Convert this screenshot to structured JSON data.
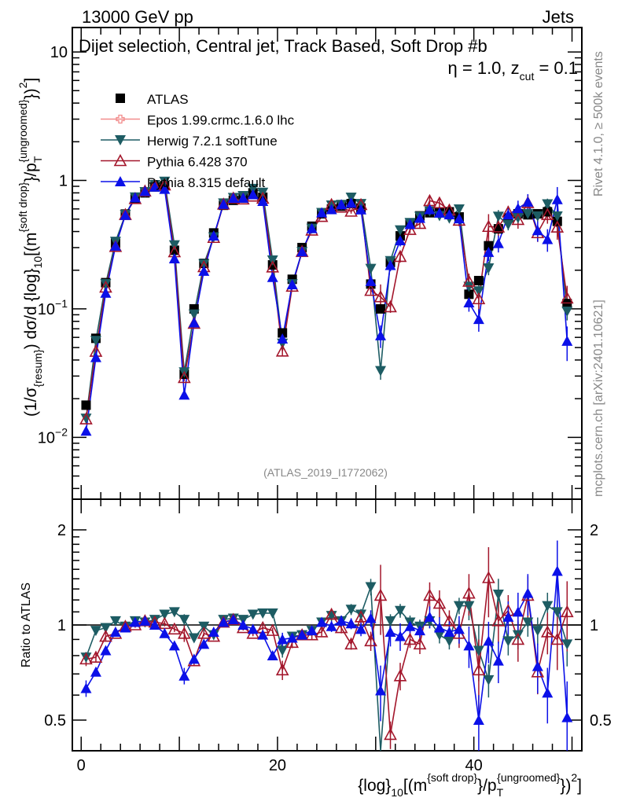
{
  "header": {
    "left": "13000 GeV pp",
    "right": "Jets"
  },
  "side": {
    "rivet": "Rivet 4.1.0, ≥ 500k events",
    "mcplots": "mcplots.cern.ch [arXiv:2401.10621]"
  },
  "watermark": "(ATLAS_2019_I1772062)",
  "chart_data": {
    "type": "scatter",
    "title": "Dijet selection, Central jet, Track Based, Soft Drop #b",
    "title_suffix": {
      "eta": "η = 1.0, z",
      "sub": "cut",
      "tail": " = 0.1"
    },
    "ylabel": {
      "pre": "(1/σ",
      "sub1": "{resum}",
      "mid": ") dσ/d {log}",
      "sub2": "10",
      "mid2": "[(m",
      "sup1": "{soft drop}",
      "mid3": "}/p",
      "sub3": "T",
      "sup2": "{ungroomed}",
      "tail": "})",
      "sup3": "2",
      "end": "]"
    },
    "xlabel": {
      "pre": "{log}",
      "sub1": "10",
      "mid": "[(m",
      "sup1": "{soft drop}",
      "mid2": "}/p",
      "sub2": "T",
      "sup2": "{ungroomed}",
      "tail": "})",
      "sup3": "2",
      "end": "]"
    },
    "ratio_ylabel": "Ratio to ATLAS",
    "xlim": [
      -0.9,
      51
    ],
    "ylim": [
      0.0033,
      15.5
    ],
    "ratio_ylim": [
      0.4,
      2.5
    ],
    "yscale": "log",
    "x_ticks": [
      "0",
      "20",
      "40"
    ],
    "y_ticks": [
      {
        "v": 0.01,
        "b": "10",
        "e": "−2"
      },
      {
        "v": 0.1,
        "b": "10",
        "e": "−1"
      },
      {
        "v": 1,
        "b": "1",
        "e": ""
      },
      {
        "v": 10,
        "b": "10",
        "e": ""
      }
    ],
    "ratio_ticks": [
      {
        "v": 0.5,
        "t": "0.5"
      },
      {
        "v": 1,
        "t": "1"
      },
      {
        "v": 2,
        "t": "2"
      }
    ],
    "legend_position": "top-left",
    "x": [
      0.5,
      1.5,
      2.5,
      3.5,
      4.5,
      5.5,
      6.5,
      7.5,
      8.5,
      9.5,
      10.5,
      11.5,
      12.5,
      13.5,
      14.5,
      15.5,
      16.5,
      17.5,
      18.5,
      19.5,
      20.5,
      21.5,
      22.5,
      23.5,
      24.5,
      25.5,
      26.5,
      27.5,
      28.5,
      29.5,
      30.5,
      31.5,
      32.5,
      33.5,
      34.5,
      35.5,
      36.5,
      37.5,
      38.5,
      39.5,
      40.5,
      41.5,
      42.5,
      43.5,
      44.5,
      45.5,
      46.5,
      47.5,
      48.5,
      49.5
    ],
    "data": {
      "name": "ATLAS",
      "color": "#000000",
      "values": [
        0.0178,
        0.059,
        0.16,
        0.325,
        0.547,
        0.72,
        0.8,
        0.89,
        0.91,
        0.286,
        0.031,
        0.1,
        0.226,
        0.39,
        0.64,
        0.7,
        0.73,
        0.8,
        0.74,
        0.22,
        0.065,
        0.17,
        0.3,
        0.44,
        0.55,
        0.6,
        0.63,
        0.66,
        0.61,
        0.156,
        0.1,
        0.23,
        0.37,
        0.46,
        0.53,
        0.56,
        0.57,
        0.57,
        0.52,
        0.13,
        0.166,
        0.31,
        0.42,
        0.51,
        0.55,
        0.54,
        0.55,
        0.57,
        0.48,
        0.11
      ]
    },
    "series": [
      {
        "name": "Epos 1.99.crmc.1.6.0 lhc",
        "color": "#f28b8b",
        "marker": "open-cross",
        "ratio": null,
        "err": null
      },
      {
        "name": "Herwig 7.2.1 softTune",
        "color": "#1d5c63",
        "marker": "down-triangle",
        "ratio": [
          0.79,
          0.96,
          0.98,
          1.03,
          0.99,
          1.03,
          1.02,
          1.04,
          1.08,
          1.1,
          1.04,
          0.91,
          0.99,
          0.93,
          1.04,
          1.05,
          1.04,
          1.08,
          1.09,
          1.09,
          0.83,
          0.92,
          0.93,
          0.96,
          1.02,
          1.07,
          1.03,
          1.12,
          1.08,
          1.32,
          0.33,
          1.03,
          1.11,
          1.02,
          0.99,
          1.03,
          0.93,
          0.89,
          1.15,
          1.15,
          0.83,
          0.67,
          1.25,
          0.89,
          0.93,
          1.02,
          0.96,
          1.15,
          1.1,
          0.87
        ],
        "err": [
          0.04,
          0.02,
          0.02,
          0.02,
          0.02,
          0.02,
          0.02,
          0.02,
          0.02,
          0.02,
          0.04,
          0.03,
          0.02,
          0.02,
          0.02,
          0.02,
          0.02,
          0.02,
          0.02,
          0.02,
          0.05,
          0.03,
          0.03,
          0.03,
          0.03,
          0.04,
          0.04,
          0.04,
          0.04,
          0.06,
          0.15,
          0.05,
          0.05,
          0.05,
          0.05,
          0.05,
          0.06,
          0.06,
          0.06,
          0.1,
          0.2,
          0.12,
          0.12,
          0.1,
          0.1,
          0.1,
          0.1,
          0.1,
          0.1,
          0.15
        ]
      },
      {
        "name": "Pythia 6.428 370",
        "color": "#a3162b",
        "marker": "open-up-triangle",
        "ratio": [
          0.78,
          0.79,
          0.92,
          0.94,
          0.99,
          1.0,
          1.03,
          1.02,
          1.01,
          0.97,
          0.94,
          0.77,
          0.94,
          0.92,
          1.02,
          1.04,
          0.98,
          0.94,
          0.98,
          0.96,
          0.72,
          0.88,
          0.93,
          0.93,
          0.95,
          1.08,
          0.98,
          0.87,
          1.06,
          0.89,
          1.24,
          0.45,
          0.69,
          0.9,
          0.87,
          1.24,
          1.17,
          1.03,
          0.94,
          1.26,
          0.72,
          1.41,
          1.03,
          1.11,
          0.9,
          1.24,
          0.71,
          0.95,
          0.9,
          1.1
        ],
        "err": [
          0.05,
          0.03,
          0.03,
          0.02,
          0.02,
          0.02,
          0.02,
          0.02,
          0.02,
          0.02,
          0.06,
          0.03,
          0.02,
          0.02,
          0.02,
          0.02,
          0.02,
          0.02,
          0.02,
          0.02,
          0.07,
          0.04,
          0.03,
          0.03,
          0.03,
          0.04,
          0.04,
          0.04,
          0.05,
          0.07,
          0.25,
          0.1,
          0.1,
          0.06,
          0.07,
          0.1,
          0.1,
          0.08,
          0.1,
          0.15,
          0.25,
          0.25,
          0.15,
          0.12,
          0.15,
          0.15,
          0.15,
          0.15,
          0.2,
          0.25
        ]
      },
      {
        "name": "Pythia 8.315 default",
        "color": "#0b10e8",
        "marker": "up-triangle",
        "ratio": [
          0.63,
          0.71,
          0.83,
          0.95,
          0.98,
          1.02,
          1.03,
          1.0,
          0.94,
          0.86,
          0.69,
          0.78,
          0.87,
          0.95,
          1.02,
          1.04,
          1.0,
          0.97,
          0.93,
          0.8,
          0.9,
          0.91,
          0.93,
          0.96,
          1.02,
          0.99,
          1.03,
          1.01,
          0.97,
          1.05,
          0.62,
          0.95,
          0.92,
          0.99,
          0.96,
          1.06,
          0.98,
          0.95,
          0.97,
          0.86,
          0.5,
          0.89,
          0.77,
          1.06,
          1.1,
          1.26,
          0.74,
          0.61,
          1.48,
          0.51
        ],
        "err": [
          0.06,
          0.03,
          0.03,
          0.02,
          0.02,
          0.02,
          0.02,
          0.02,
          0.02,
          0.02,
          0.06,
          0.03,
          0.02,
          0.02,
          0.02,
          0.02,
          0.02,
          0.02,
          0.02,
          0.02,
          0.05,
          0.03,
          0.03,
          0.03,
          0.03,
          0.04,
          0.04,
          0.04,
          0.05,
          0.06,
          0.2,
          0.1,
          0.1,
          0.06,
          0.07,
          0.08,
          0.08,
          0.08,
          0.1,
          0.15,
          0.2,
          0.15,
          0.15,
          0.12,
          0.15,
          0.15,
          0.18,
          0.2,
          0.25,
          0.3
        ]
      }
    ]
  }
}
